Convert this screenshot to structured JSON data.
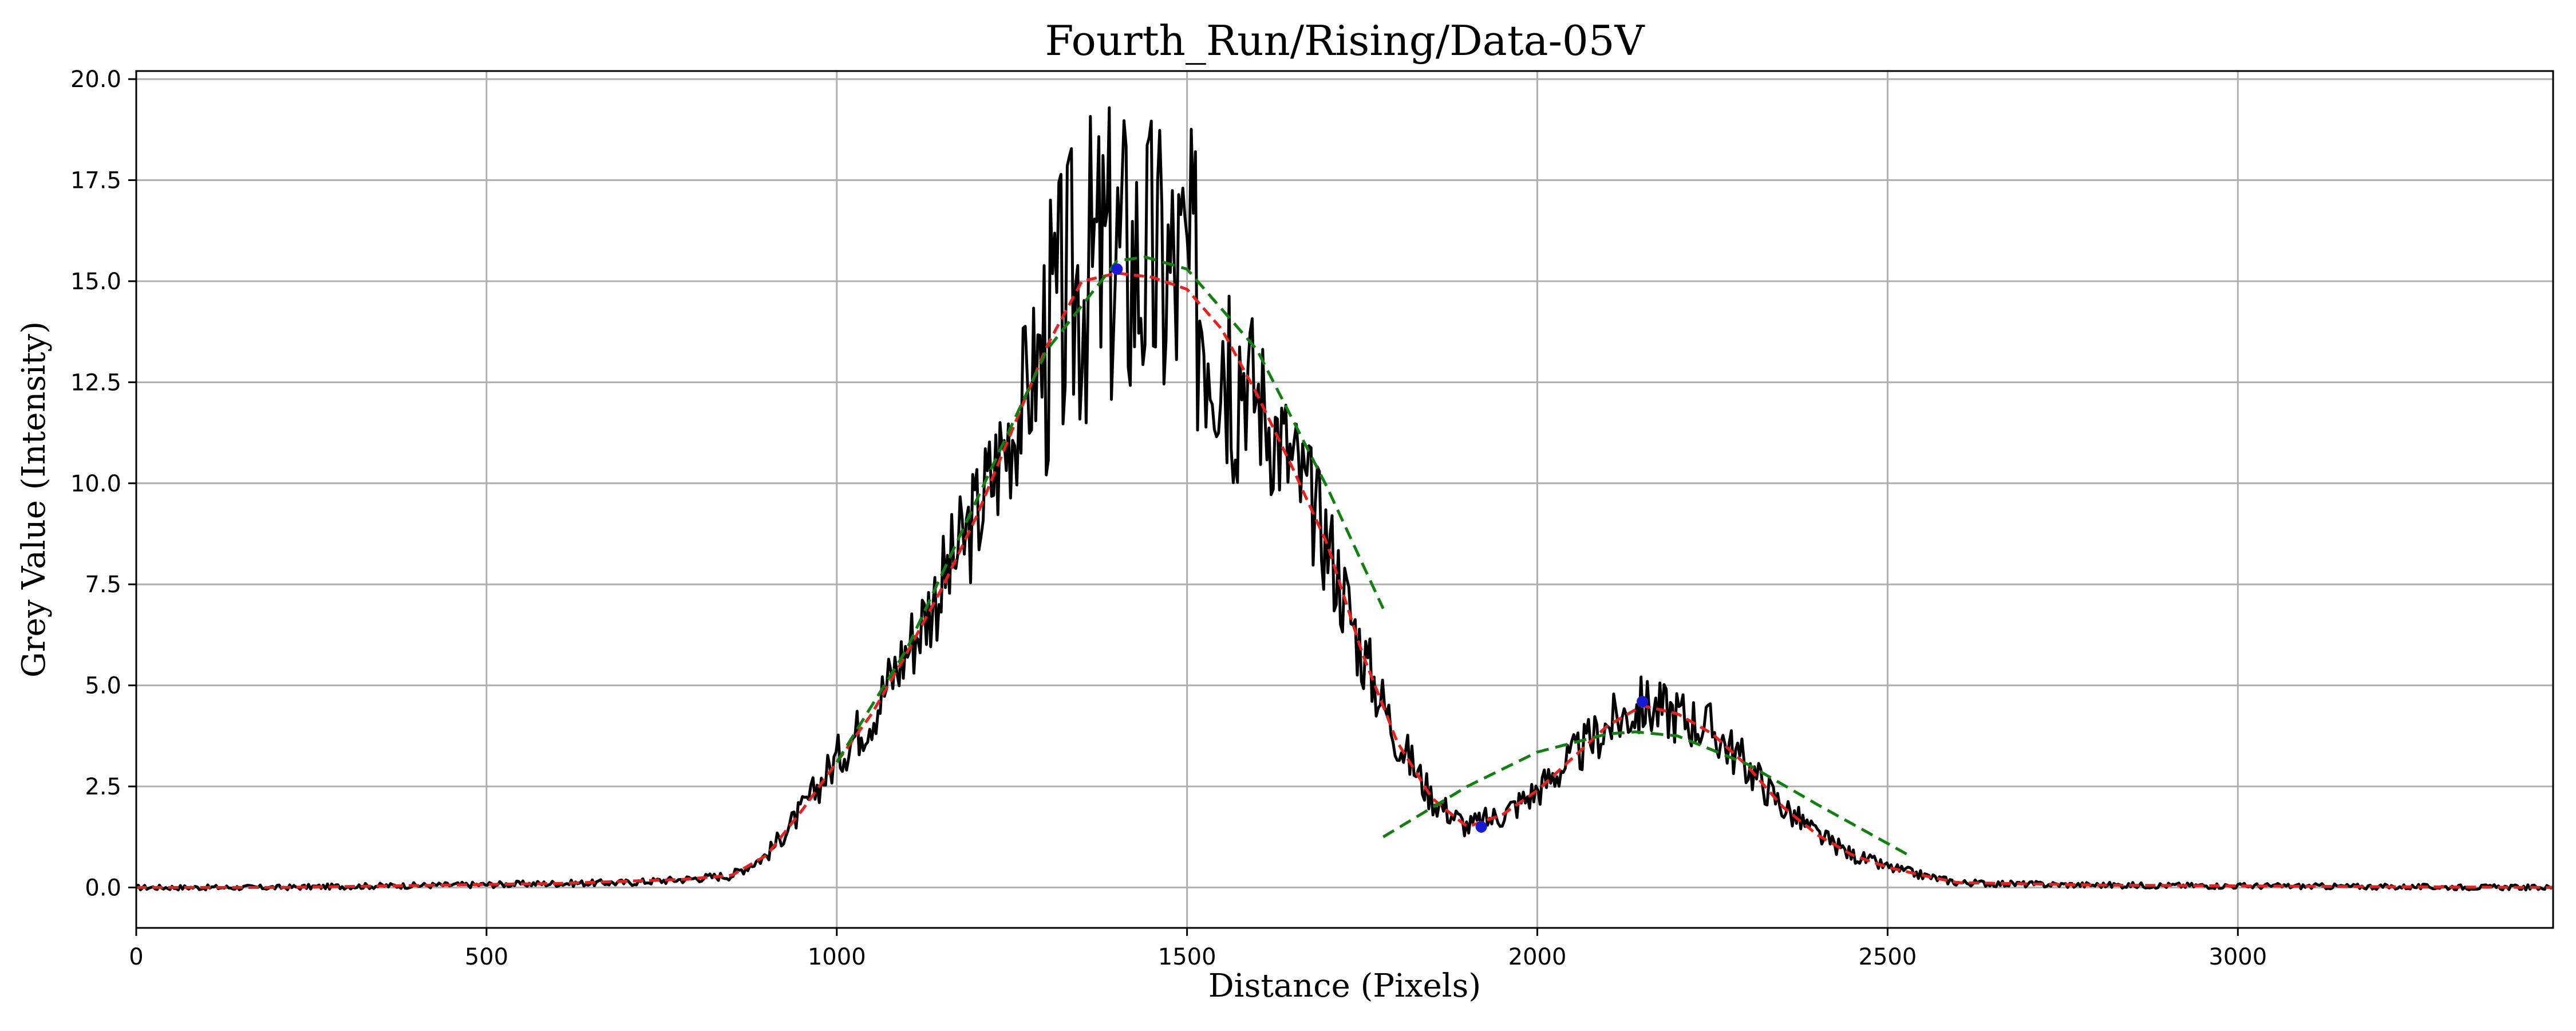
{
  "chart_data": {
    "type": "line",
    "title": "Fourth_Run/Rising/Data-05V",
    "xlabel": "Distance (Pixels)",
    "ylabel": "Grey Value (Intensity)",
    "xlim": [
      0,
      3450
    ],
    "ylim": [
      -1.0,
      20.2
    ],
    "x_ticks": [
      0,
      500,
      1000,
      1500,
      2000,
      2500,
      3000
    ],
    "y_ticks": [
      0.0,
      2.5,
      5.0,
      7.5,
      10.0,
      12.5,
      15.0,
      17.5,
      20.0
    ],
    "x_tick_labels": [
      "0",
      "500",
      "1000",
      "1500",
      "2000",
      "2500",
      "3000"
    ],
    "y_tick_labels": [
      "0.0",
      "2.5",
      "5.0",
      "7.5",
      "10.0",
      "12.5",
      "15.0",
      "17.5",
      "20.0"
    ],
    "grid": true,
    "legend": "none",
    "colors": {
      "raw": "#000000",
      "smoothed": "#e8201f",
      "gaussian_fit": "#118011",
      "markers": "#1a1ad6",
      "grid": "#b0b0b0"
    },
    "series": [
      {
        "style": "solid black noisy line",
        "x": [
          0,
          100,
          200,
          300,
          400,
          500,
          600,
          700,
          780,
          850,
          900,
          950,
          1000,
          1050,
          1100,
          1150,
          1200,
          1250,
          1300,
          1350,
          1400,
          1450,
          1500,
          1550,
          1600,
          1650,
          1700,
          1750,
          1800,
          1850,
          1900,
          1950,
          2000,
          2050,
          2100,
          2150,
          2200,
          2250,
          2300,
          2350,
          2400,
          2450,
          2500,
          2550,
          2600,
          2700,
          2800,
          2900,
          3000,
          3100,
          3200,
          3300,
          3450
        ],
        "y": [
          0.0,
          0.0,
          0.0,
          0.03,
          0.05,
          0.07,
          0.1,
          0.12,
          0.2,
          0.3,
          0.8,
          1.9,
          3.2,
          4.3,
          5.9,
          7.5,
          9.2,
          11.4,
          13.5,
          15.1,
          15.6,
          15.3,
          15.0,
          14.0,
          12.2,
          10.5,
          8.6,
          5.8,
          3.7,
          2.2,
          1.5,
          1.8,
          2.4,
          3.2,
          4.0,
          4.5,
          4.3,
          3.9,
          3.0,
          2.0,
          1.3,
          0.8,
          0.5,
          0.3,
          0.12,
          0.08,
          0.06,
          0.05,
          0.04,
          0.03,
          0.02,
          0.01,
          0.0
        ]
      },
      {
        "style": "red dashed smoothed line",
        "x": [
          0,
          200,
          400,
          600,
          780,
          850,
          900,
          950,
          1000,
          1050,
          1100,
          1150,
          1200,
          1250,
          1300,
          1350,
          1400,
          1450,
          1500,
          1550,
          1600,
          1650,
          1700,
          1750,
          1800,
          1850,
          1900,
          1950,
          2000,
          2050,
          2100,
          2150,
          2200,
          2250,
          2300,
          2350,
          2400,
          2450,
          2500,
          2550,
          2600,
          2800,
          3000,
          3200,
          3450
        ],
        "y": [
          0.0,
          0.0,
          0.05,
          0.1,
          0.2,
          0.3,
          0.8,
          1.9,
          3.1,
          4.3,
          5.8,
          7.4,
          9.2,
          11.3,
          13.4,
          15.0,
          15.2,
          15.1,
          14.8,
          13.8,
          12.2,
          10.4,
          8.5,
          5.8,
          3.6,
          2.2,
          1.5,
          1.8,
          2.4,
          3.2,
          4.0,
          4.5,
          4.3,
          3.8,
          3.0,
          2.0,
          1.3,
          0.8,
          0.5,
          0.3,
          0.12,
          0.06,
          0.04,
          0.02,
          0.0
        ]
      },
      {
        "style": "green dashed gaussian fit (peak 1)",
        "x": [
          1000,
          1100,
          1200,
          1300,
          1400,
          1440,
          1500,
          1600,
          1700,
          1780
        ],
        "y": [
          3.1,
          5.9,
          9.6,
          13.3,
          15.5,
          15.6,
          15.3,
          13.3,
          9.9,
          6.9
        ]
      },
      {
        "style": "green dashed gaussian fit (peak 2)",
        "x": [
          1780,
          1900,
          2000,
          2100,
          2140,
          2200,
          2300,
          2400,
          2530
        ],
        "y": [
          1.25,
          2.5,
          3.35,
          3.8,
          3.85,
          3.75,
          3.05,
          2.05,
          0.8
        ]
      }
    ],
    "markers": [
      {
        "x": 1400,
        "y": 15.3
      },
      {
        "x": 1920,
        "y": 1.5
      },
      {
        "x": 2150,
        "y": 4.6
      }
    ]
  }
}
